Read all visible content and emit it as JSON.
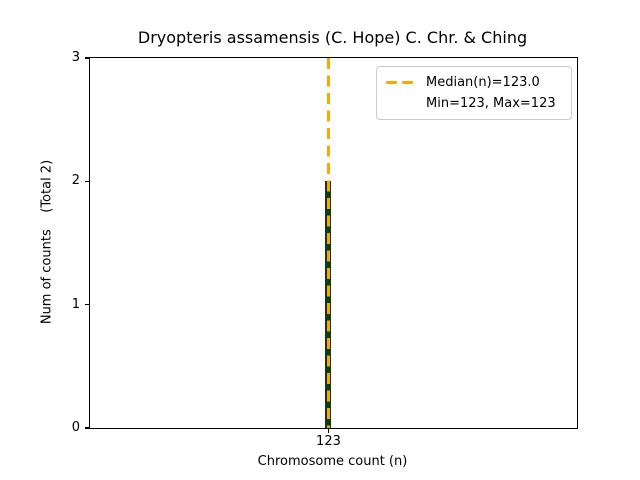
{
  "chart_data": {
    "type": "bar",
    "title": "Dryopteris assamensis (C. Hope) C. Chr. & Ching",
    "xlabel": "Chromosome count (n)",
    "ylabel": "Num of counts    (Total 2)",
    "categories": [
      "123"
    ],
    "x": [
      123
    ],
    "values": [
      2
    ],
    "total": 2,
    "median": 123.0,
    "min": 123,
    "max": 123,
    "ylim": [
      0,
      3
    ],
    "yticks": [
      0,
      1,
      2,
      3
    ],
    "grid": false,
    "legend_position": "upper right",
    "bar_color": "#0c3b14",
    "median_line_color": "#ffa500",
    "legend": {
      "median_label": "Median(n)=123.0",
      "minmax_label": "Min=123, Max=123"
    }
  }
}
